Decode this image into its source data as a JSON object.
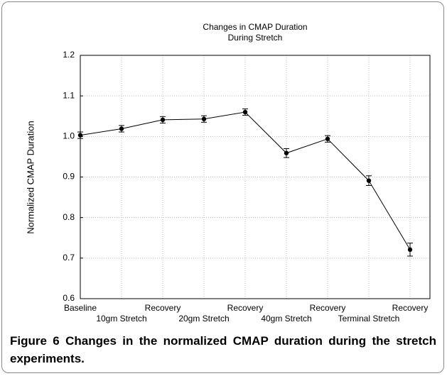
{
  "chart_data": {
    "type": "line",
    "title": "Changes in CMAP Duration",
    "subtitle": "During Stretch",
    "y_label": "Normalized CMAP Duration",
    "categories": [
      "Baseline",
      "10gm Stretch",
      "Recovery",
      "20gm Stretch",
      "Recovery",
      "40gm Stretch",
      "Recovery",
      "Terminal Stretch",
      "Recovery"
    ],
    "series": [
      {
        "name": "CMAP Duration",
        "color": "#000000",
        "values": [
          1.003,
          1.019,
          1.041,
          1.043,
          1.06,
          0.959,
          0.994,
          0.891,
          0.721
        ],
        "errors": [
          0.008,
          0.008,
          0.008,
          0.008,
          0.008,
          0.011,
          0.008,
          0.012,
          0.016
        ]
      }
    ],
    "ylim": [
      0.6,
      1.2
    ],
    "yticks": [
      0.6,
      0.7,
      0.8,
      0.9,
      {
        "value": 1,
        "label": "1.0"
      },
      1.1,
      1.2
    ],
    "grid": true
  },
  "caption": {
    "label": "Figure 6",
    "text": "Changes in the normalized CMAP duration during the stretch experiments."
  }
}
